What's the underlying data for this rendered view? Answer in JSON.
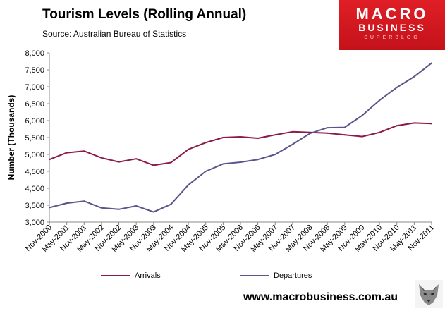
{
  "header": {
    "title": "Tourism Levels (Rolling Annual)",
    "subtitle": "Source: Australian Bureau of Statistics"
  },
  "logo": {
    "line1": "MACRO",
    "line2": "BUSINESS",
    "line3": "SUPERBLOG"
  },
  "footer": {
    "website": "www.macrobusiness.com.au"
  },
  "colors": {
    "arrivals": "#8b1a4a",
    "departures": "#5a558a",
    "brand": "#d7191f"
  },
  "chart_data": {
    "type": "line",
    "title": "Tourism Levels (Rolling Annual)",
    "xlabel": "",
    "ylabel": "Number (Thousands)",
    "ylim": [
      3000,
      8000
    ],
    "yticks": [
      3000,
      3500,
      4000,
      4500,
      5000,
      5500,
      6000,
      6500,
      7000,
      7500,
      8000
    ],
    "ytick_labels": [
      "3,000",
      "3,500",
      "4,000",
      "4,500",
      "5,000",
      "5,500",
      "6,000",
      "6,500",
      "7,000",
      "7,500",
      "8,000"
    ],
    "categories": [
      "Nov-2000",
      "May-2001",
      "Nov-2001",
      "May-2002",
      "Nov-2002",
      "May-2003",
      "Nov-2003",
      "May-2004",
      "Nov-2004",
      "May-2005",
      "Nov-2005",
      "May-2006",
      "Nov-2006",
      "May-2007",
      "Nov-2007",
      "May-2008",
      "Nov-2008",
      "May-2009",
      "Nov-2009",
      "May-2010",
      "Nov-2010",
      "May-2011",
      "Nov-2011"
    ],
    "legend_position": "bottom",
    "grid": false,
    "series": [
      {
        "name": "Arrivals",
        "values": [
          4850,
          5050,
          5100,
          4900,
          4780,
          4870,
          4680,
          4760,
          5150,
          5350,
          5500,
          5520,
          5480,
          5580,
          5670,
          5650,
          5630,
          5580,
          5530,
          5650,
          5850,
          5930,
          5910
        ]
      },
      {
        "name": "Departures",
        "values": [
          3430,
          3560,
          3620,
          3420,
          3380,
          3480,
          3300,
          3530,
          4100,
          4500,
          4720,
          4770,
          4850,
          5000,
          5300,
          5620,
          5790,
          5800,
          6150,
          6600,
          6980,
          7300,
          7700
        ]
      }
    ]
  }
}
